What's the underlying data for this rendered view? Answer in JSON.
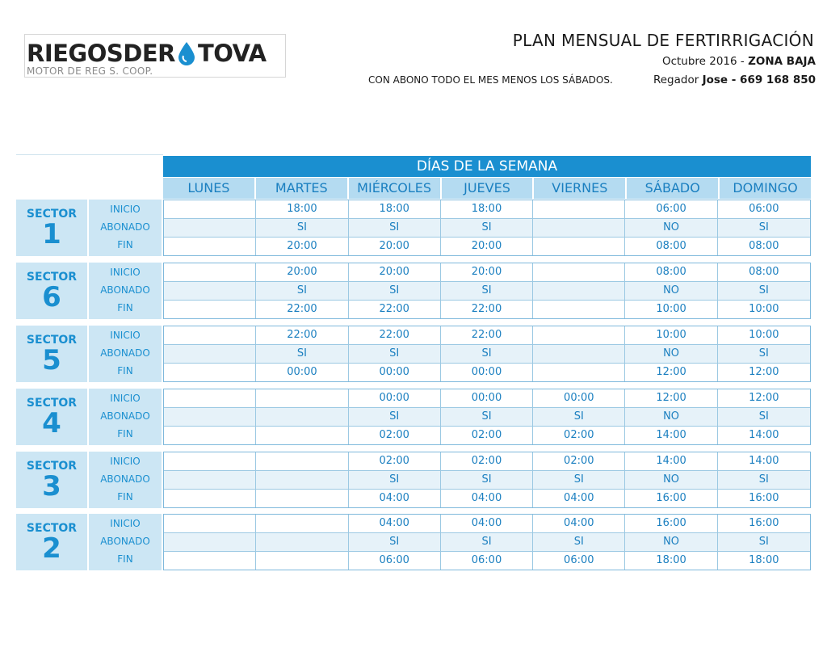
{
  "logo": {
    "left": "RIEGOSDER",
    "right": "TOVA",
    "subtitle": "MOTOR DE REG S. COOP.",
    "drop_color": "#1a8fd0"
  },
  "header": {
    "title": "PLAN MENSUAL DE FERTIRRIGACIÓN",
    "month": "Octubre 2016 -",
    "zone": "ZONA BAJA",
    "regador_label": "Regador",
    "regador_name": "Jose - 669 168 850",
    "note": "CON ABONO TODO EL MES MENOS LOS SÁBADOS."
  },
  "colors": {
    "accent": "#1a8fd0",
    "header_light": "#b4dbf1",
    "label_bg": "#cce6f4"
  },
  "schedule": {
    "banner": "DÍAS DE LA SEMANA",
    "days": [
      "LUNES",
      "MARTES",
      "MIÉRCOLES",
      "JUEVES",
      "VIERNES",
      "SÁBADO",
      "DOMINGO"
    ],
    "row_labels": [
      "INICIO",
      "ABONADO",
      "FIN"
    ],
    "sector_word": "SECTOR",
    "sectors": [
      {
        "number": "1",
        "rows": [
          [
            "",
            "18:00",
            "18:00",
            "18:00",
            "",
            "06:00",
            "06:00"
          ],
          [
            "",
            "SI",
            "SI",
            "SI",
            "",
            "NO",
            "SI"
          ],
          [
            "",
            "20:00",
            "20:00",
            "20:00",
            "",
            "08:00",
            "08:00"
          ]
        ]
      },
      {
        "number": "6",
        "rows": [
          [
            "",
            "20:00",
            "20:00",
            "20:00",
            "",
            "08:00",
            "08:00"
          ],
          [
            "",
            "SI",
            "SI",
            "SI",
            "",
            "NO",
            "SI"
          ],
          [
            "",
            "22:00",
            "22:00",
            "22:00",
            "",
            "10:00",
            "10:00"
          ]
        ]
      },
      {
        "number": "5",
        "rows": [
          [
            "",
            "22:00",
            "22:00",
            "22:00",
            "",
            "10:00",
            "10:00"
          ],
          [
            "",
            "SI",
            "SI",
            "SI",
            "",
            "NO",
            "SI"
          ],
          [
            "",
            "00:00",
            "00:00",
            "00:00",
            "",
            "12:00",
            "12:00"
          ]
        ]
      },
      {
        "number": "4",
        "rows": [
          [
            "",
            "",
            "00:00",
            "00:00",
            "00:00",
            "12:00",
            "12:00"
          ],
          [
            "",
            "",
            "SI",
            "SI",
            "SI",
            "NO",
            "SI"
          ],
          [
            "",
            "",
            "02:00",
            "02:00",
            "02:00",
            "14:00",
            "14:00"
          ]
        ]
      },
      {
        "number": "3",
        "rows": [
          [
            "",
            "",
            "02:00",
            "02:00",
            "02:00",
            "14:00",
            "14:00"
          ],
          [
            "",
            "",
            "SI",
            "SI",
            "SI",
            "NO",
            "SI"
          ],
          [
            "",
            "",
            "04:00",
            "04:00",
            "04:00",
            "16:00",
            "16:00"
          ]
        ]
      },
      {
        "number": "2",
        "rows": [
          [
            "",
            "",
            "04:00",
            "04:00",
            "04:00",
            "16:00",
            "16:00"
          ],
          [
            "",
            "",
            "SI",
            "SI",
            "SI",
            "NO",
            "SI"
          ],
          [
            "",
            "",
            "06:00",
            "06:00",
            "06:00",
            "18:00",
            "18:00"
          ]
        ]
      }
    ]
  }
}
